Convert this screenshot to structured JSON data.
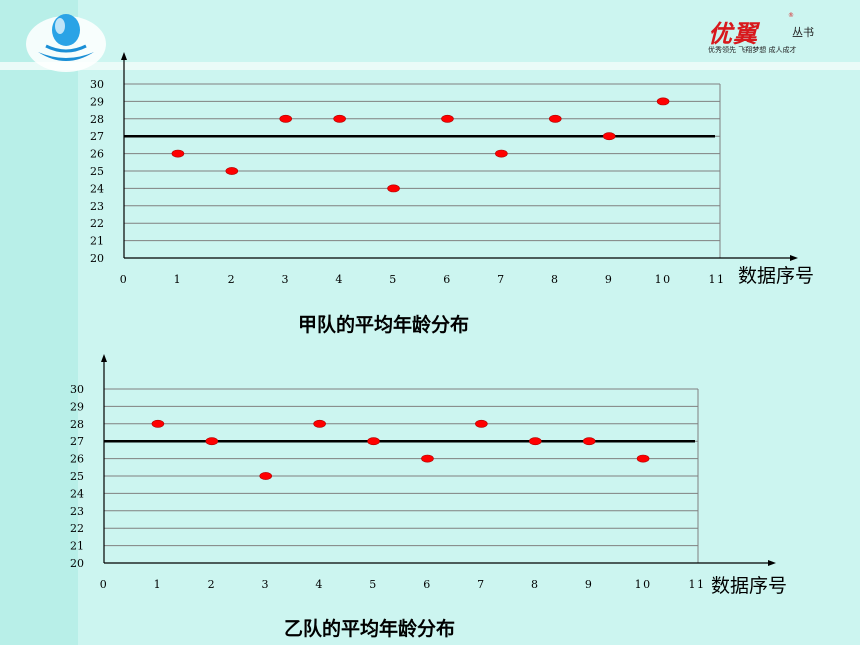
{
  "brand": {
    "name": "优翼",
    "registered_mark": "®",
    "series": "丛书",
    "slogan": "优秀领先 飞翔梦想 成人成才"
  },
  "colors": {
    "point": "#ff0000",
    "mean_line": "#000000",
    "grid": "#808080"
  },
  "chart_data": [
    {
      "type": "scatter",
      "title": "甲队的平均年龄分布",
      "xlabel": "数据序号",
      "ylabel": "",
      "xlim": [
        0,
        11
      ],
      "ylim": [
        20,
        30
      ],
      "x_ticks": [
        0,
        1,
        2,
        3,
        4,
        5,
        6,
        7,
        8,
        9,
        10,
        11
      ],
      "y_ticks": [
        20,
        21,
        22,
        23,
        24,
        25,
        26,
        27,
        28,
        29,
        30
      ],
      "grid": true,
      "mean_line": 27,
      "x": [
        1,
        2,
        3,
        4,
        5,
        6,
        7,
        8,
        9,
        10
      ],
      "y": [
        26,
        25,
        28,
        28,
        24,
        28,
        26,
        28,
        27,
        29
      ]
    },
    {
      "type": "scatter",
      "title": "乙队的平均年龄分布",
      "xlabel": "数据序号",
      "ylabel": "",
      "xlim": [
        0,
        11
      ],
      "ylim": [
        20,
        30
      ],
      "x_ticks": [
        0,
        1,
        2,
        3,
        4,
        5,
        6,
        7,
        8,
        9,
        10,
        11
      ],
      "y_ticks": [
        20,
        21,
        22,
        23,
        24,
        25,
        26,
        27,
        28,
        29,
        30
      ],
      "grid": true,
      "mean_line": 27,
      "x": [
        1,
        2,
        3,
        4,
        5,
        6,
        7,
        8,
        9,
        10
      ],
      "y": [
        28,
        27,
        25,
        28,
        27,
        26,
        28,
        27,
        27,
        26
      ]
    }
  ]
}
